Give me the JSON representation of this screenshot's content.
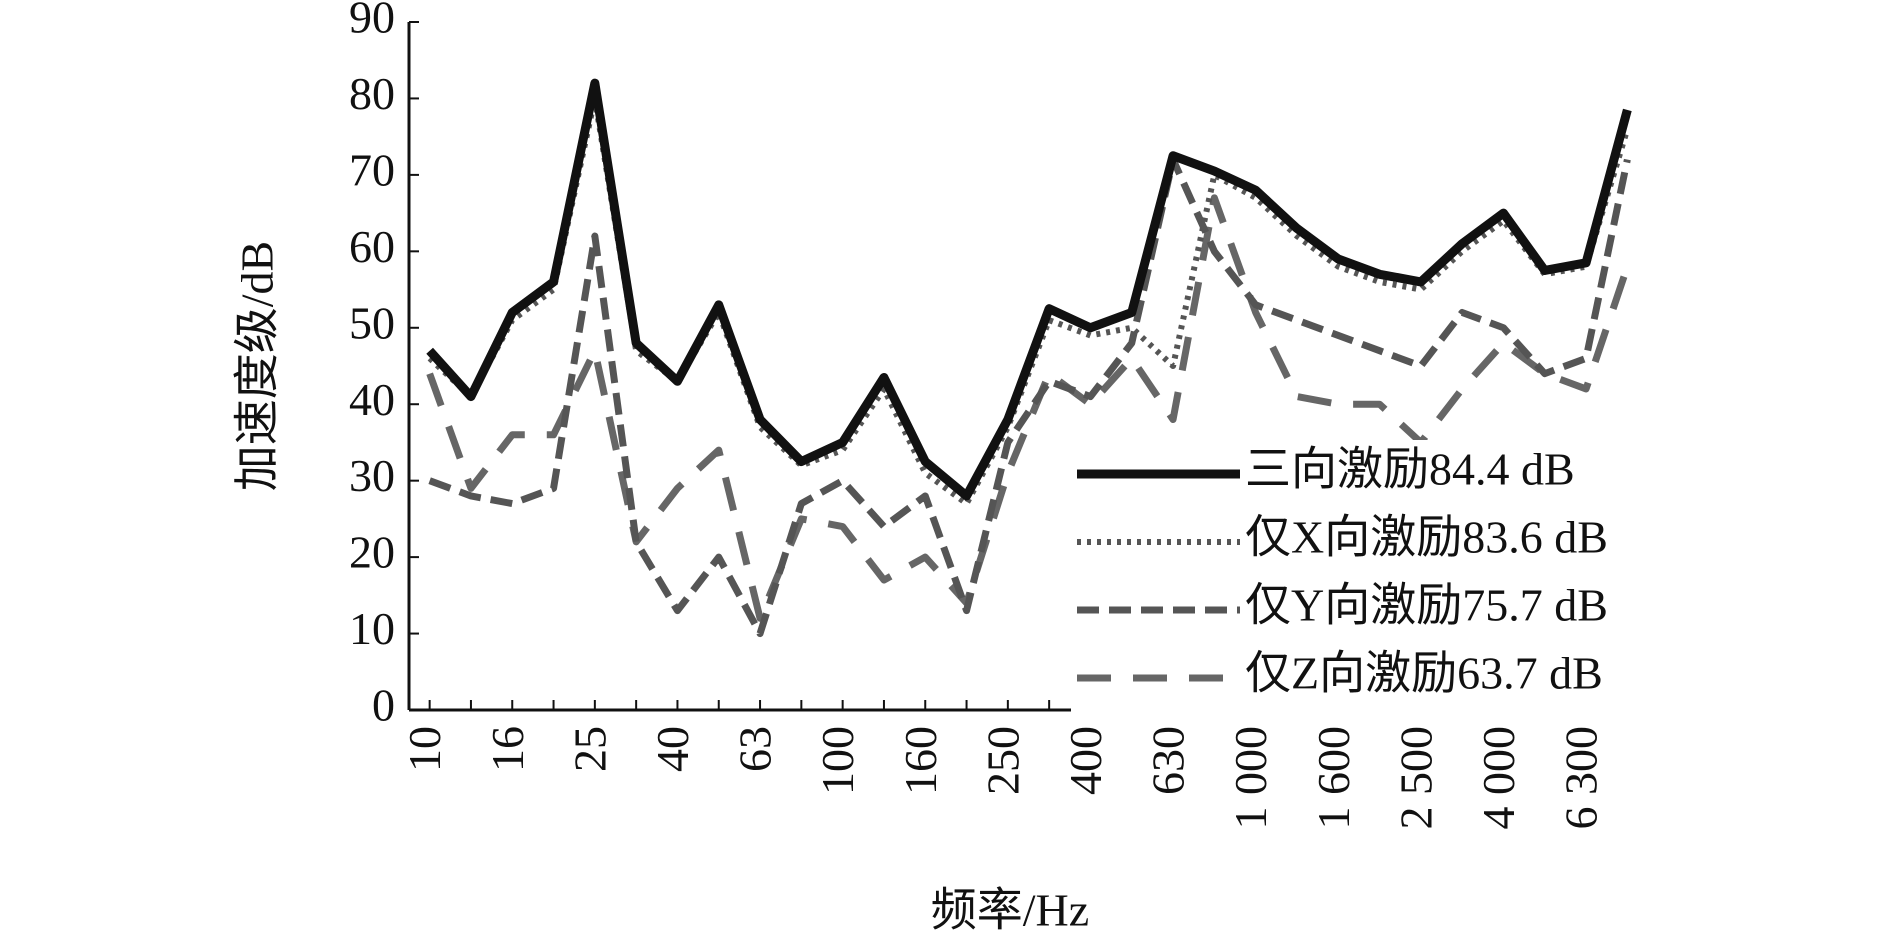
{
  "chart_data": {
    "type": "line",
    "x_label": "频率/Hz",
    "y_label": "加速度级/dB",
    "categories": [
      "10",
      null,
      "16",
      null,
      "25",
      null,
      "40",
      null,
      "63",
      null,
      "100",
      null,
      "160",
      null,
      "250",
      null,
      "400",
      null,
      "630",
      null,
      "1 000",
      null,
      "1 600",
      null,
      "2 500",
      null,
      "4 000",
      null,
      "6 300",
      null
    ],
    "series": [
      {
        "name": "三向激励84.4 dB",
        "color": "#111111",
        "style": "solid",
        "values": [
          47,
          41,
          52,
          56,
          82,
          48,
          43,
          53,
          38,
          32.5,
          35,
          43.5,
          32.5,
          28,
          38,
          52.5,
          50,
          52,
          72.5,
          70.5,
          68,
          63,
          59,
          57,
          56,
          61,
          65,
          57.5,
          58.5,
          78.5
        ]
      },
      {
        "name": "仅X向激励83.6 dB",
        "color": "#555555",
        "style": "dotted",
        "values": [
          46,
          41,
          51,
          55,
          80,
          47,
          43,
          52,
          37,
          32,
          34,
          42,
          31,
          27,
          37,
          51,
          49,
          50,
          45,
          70,
          67,
          62,
          58,
          56,
          55,
          60,
          64,
          57,
          58,
          76
        ]
      },
      {
        "name": "仅Y向激励75.7 dB",
        "color": "#555555",
        "style": "dashed",
        "values": [
          30,
          28,
          27,
          29,
          62,
          22,
          13,
          20,
          10,
          27,
          30,
          24,
          28,
          13,
          35,
          43,
          41,
          48,
          72,
          60,
          53,
          51,
          49,
          47,
          45,
          52,
          50,
          44,
          46,
          72
        ]
      },
      {
        "name": "仅Z向激励63.7 dB",
        "color": "#666666",
        "style": "longdash",
        "values": [
          44,
          29,
          36,
          36,
          47,
          22,
          29,
          34,
          12,
          25,
          24,
          17,
          20,
          14,
          31,
          44,
          40,
          46,
          38,
          67,
          52,
          41,
          40,
          40,
          35,
          42,
          48,
          44,
          42,
          58
        ]
      }
    ],
    "ylim": [
      0,
      90
    ],
    "yticks": [
      0,
      10,
      20,
      30,
      40,
      50,
      60,
      70,
      80,
      90
    ],
    "grid": false,
    "legend": "lower right"
  }
}
